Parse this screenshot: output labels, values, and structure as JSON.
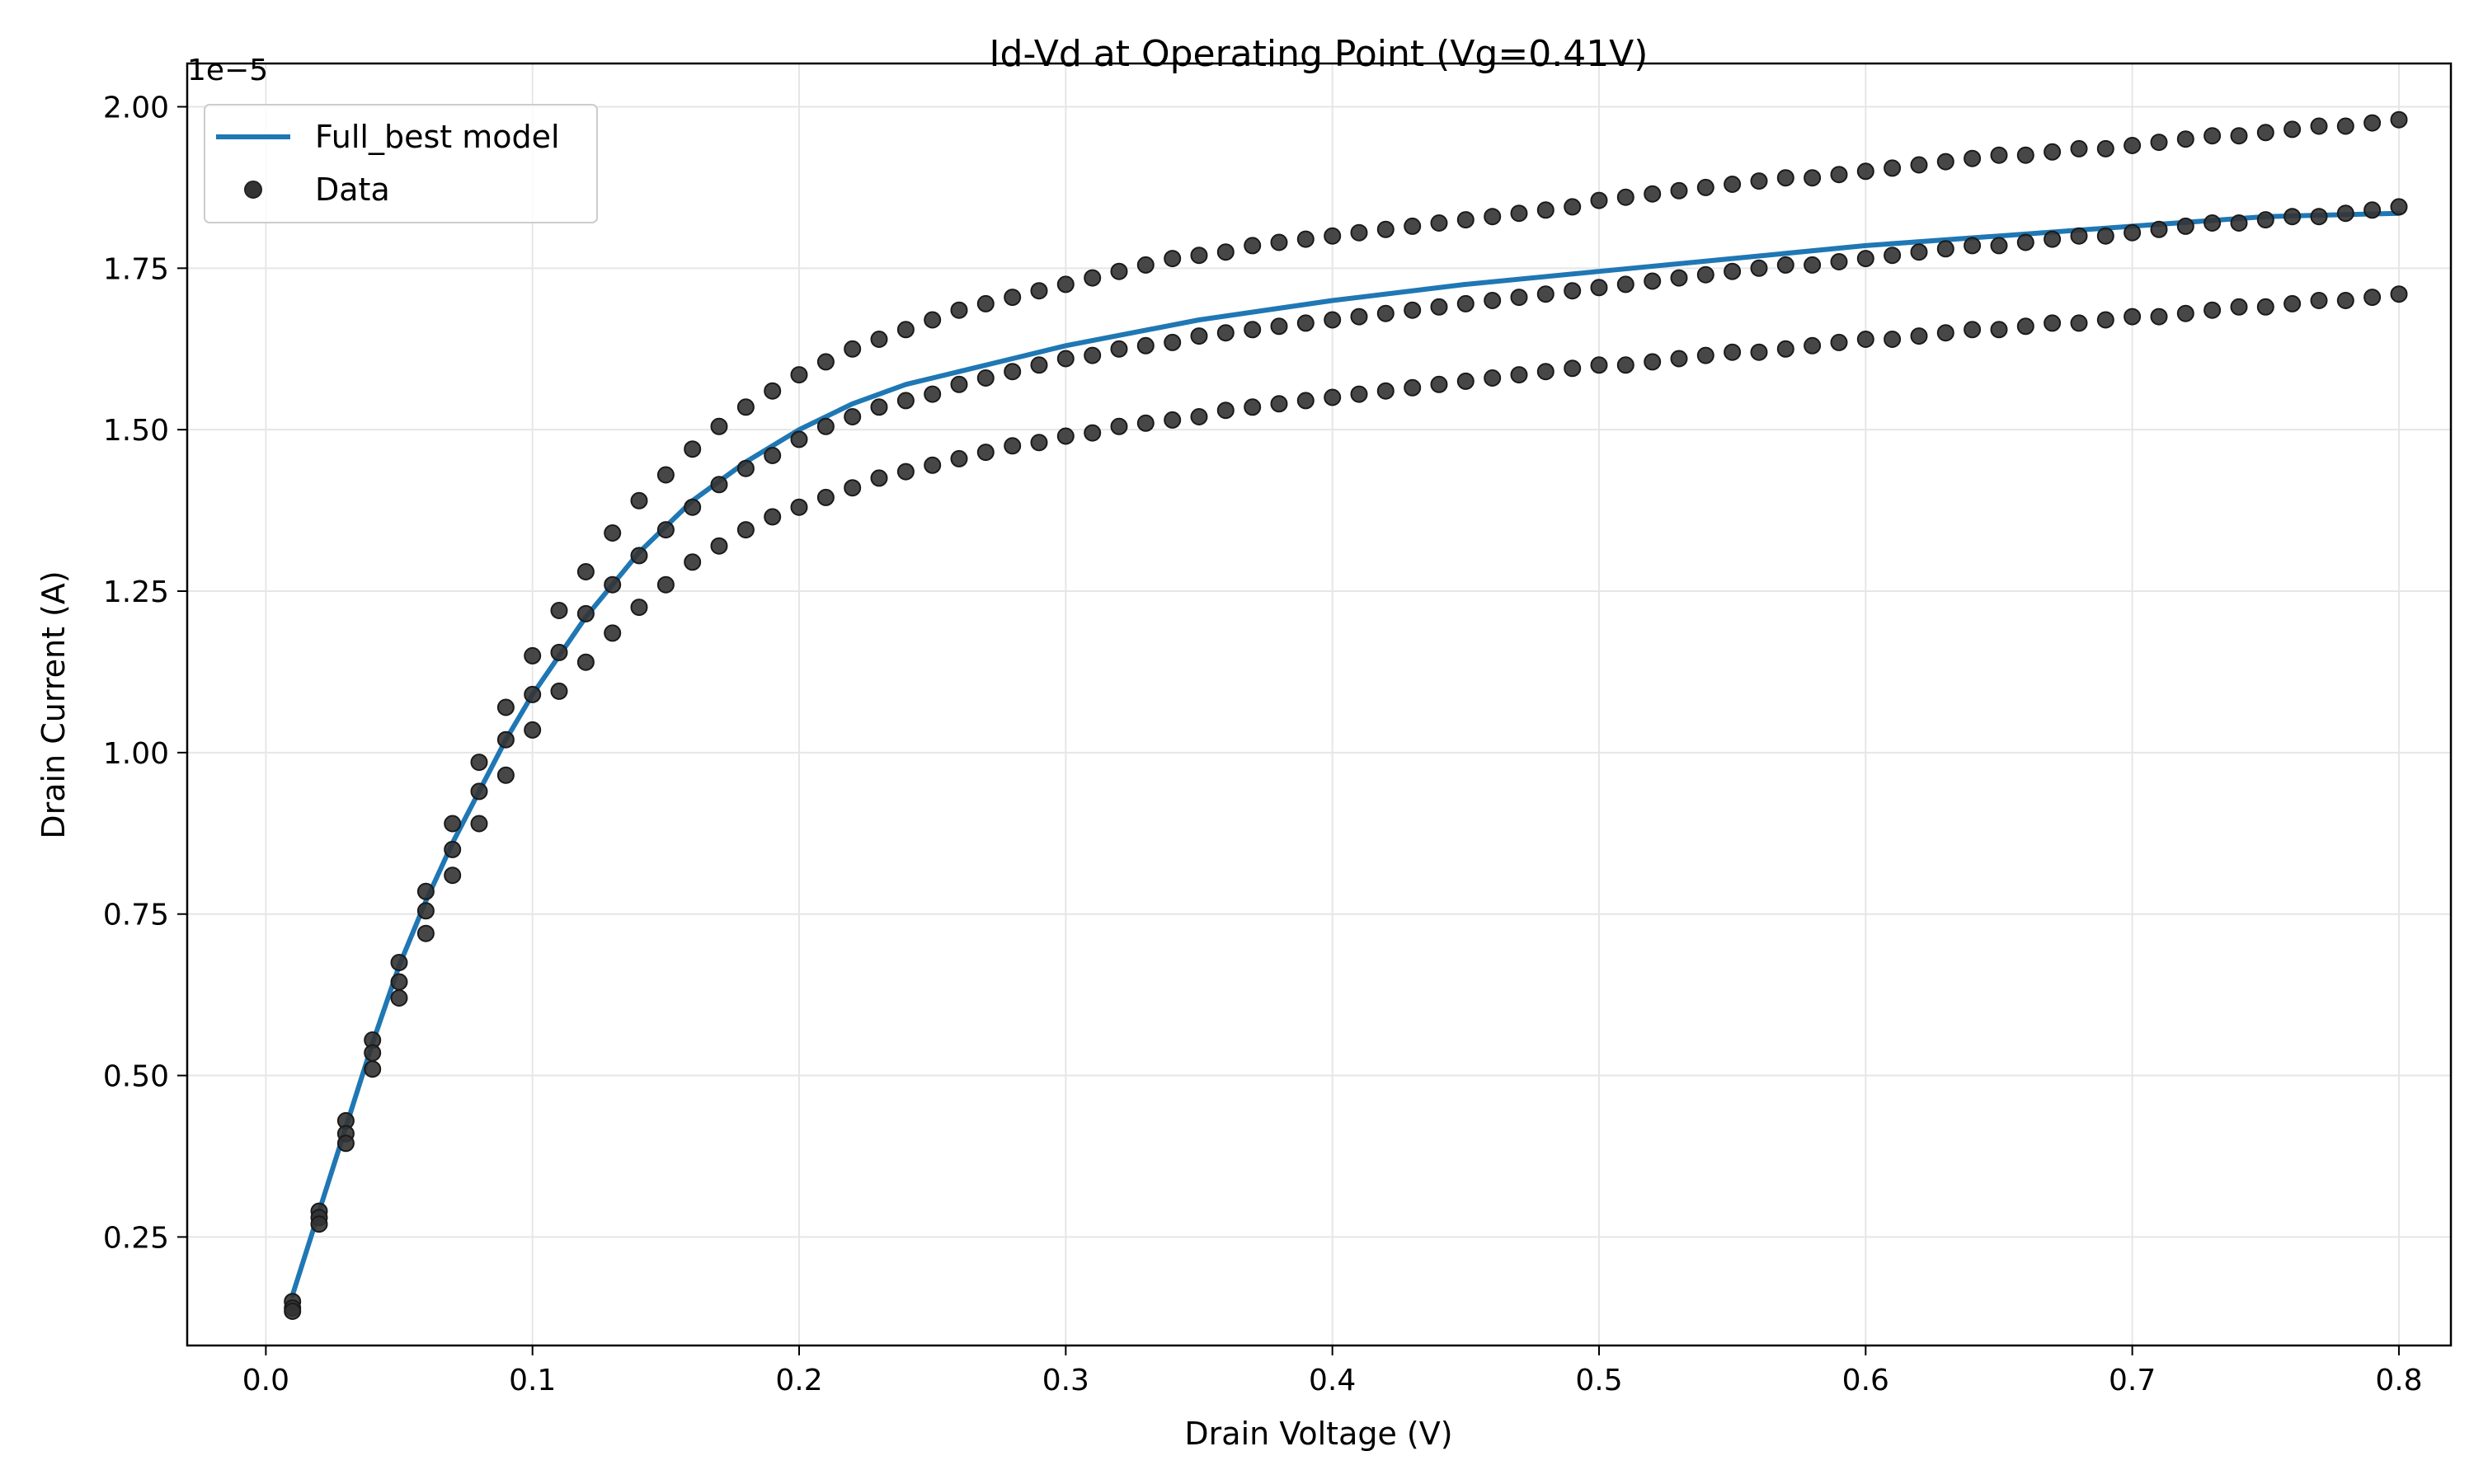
{
  "chart_data": {
    "type": "line",
    "title": "Id-Vd at Operating Point (Vg=0.41V)",
    "xlabel": "Drain Voltage (V)",
    "ylabel": "Drain Current (A)",
    "y_offset_label": "1e−5",
    "xlim": [
      -0.0295,
      0.8195
    ],
    "ylim": [
      0.082,
      2.067
    ],
    "x_ticks": [
      0.0,
      0.1,
      0.2,
      0.3,
      0.4,
      0.5,
      0.6,
      0.7,
      0.8
    ],
    "x_tick_labels": [
      "0.0",
      "0.1",
      "0.2",
      "0.3",
      "0.4",
      "0.5",
      "0.6",
      "0.7",
      "0.8"
    ],
    "y_ticks": [
      0.25,
      0.5,
      0.75,
      1.0,
      1.25,
      1.5,
      1.75,
      2.0
    ],
    "y_tick_labels": [
      "0.25",
      "0.50",
      "0.75",
      "1.00",
      "1.25",
      "1.50",
      "1.75",
      "2.00"
    ],
    "grid": true,
    "legend_position": "top-left",
    "colors": {
      "model_line": "#1f77b4",
      "data_points": "#333333",
      "grid": "#e6e6e6",
      "axes": "#000000"
    },
    "series": [
      {
        "name": "Full_best model",
        "kind": "line",
        "x": [
          0.01,
          0.02,
          0.03,
          0.04,
          0.05,
          0.06,
          0.07,
          0.08,
          0.09,
          0.1,
          0.12,
          0.14,
          0.16,
          0.18,
          0.2,
          0.22,
          0.24,
          0.26,
          0.28,
          0.3,
          0.35,
          0.4,
          0.45,
          0.5,
          0.55,
          0.6,
          0.65,
          0.7,
          0.75,
          0.8
        ],
        "y": [
          0.16,
          0.29,
          0.42,
          0.55,
          0.67,
          0.77,
          0.86,
          0.94,
          1.02,
          1.09,
          1.21,
          1.31,
          1.39,
          1.45,
          1.5,
          1.54,
          1.57,
          1.59,
          1.61,
          1.63,
          1.67,
          1.7,
          1.725,
          1.745,
          1.765,
          1.785,
          1.8,
          1.815,
          1.83,
          1.835
        ]
      },
      {
        "name": "Data",
        "kind": "scatter",
        "x": [
          0.01,
          0.02,
          0.03,
          0.04,
          0.05,
          0.06,
          0.07,
          0.08,
          0.09,
          0.1,
          0.11,
          0.12,
          0.13,
          0.14,
          0.15,
          0.16,
          0.17,
          0.18,
          0.19,
          0.2,
          0.21,
          0.22,
          0.23,
          0.24,
          0.25,
          0.26,
          0.27,
          0.28,
          0.29,
          0.3,
          0.31,
          0.32,
          0.33,
          0.34,
          0.35,
          0.36,
          0.37,
          0.38,
          0.39,
          0.4,
          0.41,
          0.42,
          0.43,
          0.44,
          0.45,
          0.46,
          0.47,
          0.48,
          0.49,
          0.5,
          0.51,
          0.52,
          0.53,
          0.54,
          0.55,
          0.56,
          0.57,
          0.58,
          0.59,
          0.6,
          0.61,
          0.62,
          0.63,
          0.64,
          0.65,
          0.66,
          0.67,
          0.68,
          0.69,
          0.7,
          0.71,
          0.72,
          0.73,
          0.74,
          0.75,
          0.76,
          0.77,
          0.78,
          0.79,
          0.8,
          0.01,
          0.02,
          0.03,
          0.04,
          0.05,
          0.06,
          0.07,
          0.08,
          0.09,
          0.1,
          0.11,
          0.12,
          0.13,
          0.14,
          0.15,
          0.16,
          0.17,
          0.18,
          0.19,
          0.2,
          0.21,
          0.22,
          0.23,
          0.24,
          0.25,
          0.26,
          0.27,
          0.28,
          0.29,
          0.3,
          0.31,
          0.32,
          0.33,
          0.34,
          0.35,
          0.36,
          0.37,
          0.38,
          0.39,
          0.4,
          0.41,
          0.42,
          0.43,
          0.44,
          0.45,
          0.46,
          0.47,
          0.48,
          0.49,
          0.5,
          0.51,
          0.52,
          0.53,
          0.54,
          0.55,
          0.56,
          0.57,
          0.58,
          0.59,
          0.6,
          0.61,
          0.62,
          0.63,
          0.64,
          0.65,
          0.66,
          0.67,
          0.68,
          0.69,
          0.7,
          0.71,
          0.72,
          0.73,
          0.74,
          0.75,
          0.76,
          0.77,
          0.78,
          0.79,
          0.8,
          0.01,
          0.02,
          0.03,
          0.04,
          0.05,
          0.06,
          0.07,
          0.08,
          0.09,
          0.1,
          0.11,
          0.12,
          0.13,
          0.14,
          0.15,
          0.16,
          0.17,
          0.18,
          0.19,
          0.2,
          0.21,
          0.22,
          0.23,
          0.24,
          0.25,
          0.26,
          0.27,
          0.28,
          0.29,
          0.3,
          0.31,
          0.32,
          0.33,
          0.34,
          0.35,
          0.36,
          0.37,
          0.38,
          0.39,
          0.4,
          0.41,
          0.42,
          0.43,
          0.44,
          0.45,
          0.46,
          0.47,
          0.48,
          0.49,
          0.5,
          0.51,
          0.52,
          0.53,
          0.54,
          0.55,
          0.56,
          0.57,
          0.58,
          0.59,
          0.6,
          0.61,
          0.62,
          0.63,
          0.64,
          0.65,
          0.66,
          0.67,
          0.68,
          0.69,
          0.7,
          0.71,
          0.72,
          0.73,
          0.74,
          0.75,
          0.76,
          0.77,
          0.78,
          0.79,
          0.8
        ],
        "y": [
          0.15,
          0.29,
          0.43,
          0.555,
          0.675,
          0.785,
          0.89,
          0.985,
          1.07,
          1.15,
          1.22,
          1.28,
          1.34,
          1.39,
          1.43,
          1.47,
          1.505,
          1.535,
          1.56,
          1.585,
          1.605,
          1.625,
          1.64,
          1.655,
          1.67,
          1.685,
          1.695,
          1.705,
          1.715,
          1.725,
          1.735,
          1.745,
          1.755,
          1.765,
          1.77,
          1.775,
          1.785,
          1.79,
          1.795,
          1.8,
          1.805,
          1.81,
          1.815,
          1.82,
          1.825,
          1.83,
          1.835,
          1.84,
          1.845,
          1.855,
          1.86,
          1.865,
          1.87,
          1.875,
          1.88,
          1.885,
          1.89,
          1.89,
          1.895,
          1.9,
          1.905,
          1.91,
          1.915,
          1.92,
          1.925,
          1.925,
          1.93,
          1.935,
          1.935,
          1.94,
          1.945,
          1.95,
          1.955,
          1.955,
          1.96,
          1.965,
          1.97,
          1.97,
          1.975,
          1.98,
          0.14,
          0.28,
          0.41,
          0.535,
          0.645,
          0.755,
          0.85,
          0.94,
          1.02,
          1.09,
          1.155,
          1.215,
          1.26,
          1.305,
          1.345,
          1.38,
          1.415,
          1.44,
          1.46,
          1.485,
          1.505,
          1.52,
          1.535,
          1.545,
          1.555,
          1.57,
          1.58,
          1.59,
          1.6,
          1.61,
          1.615,
          1.625,
          1.63,
          1.635,
          1.645,
          1.65,
          1.655,
          1.66,
          1.665,
          1.67,
          1.675,
          1.68,
          1.685,
          1.69,
          1.695,
          1.7,
          1.705,
          1.71,
          1.715,
          1.72,
          1.725,
          1.73,
          1.735,
          1.74,
          1.745,
          1.75,
          1.755,
          1.755,
          1.76,
          1.765,
          1.77,
          1.775,
          1.78,
          1.785,
          1.785,
          1.79,
          1.795,
          1.8,
          1.8,
          1.805,
          1.81,
          1.815,
          1.82,
          1.82,
          1.825,
          1.83,
          1.83,
          1.835,
          1.84,
          1.845,
          0.135,
          0.27,
          0.395,
          0.51,
          0.62,
          0.72,
          0.81,
          0.89,
          0.965,
          1.035,
          1.095,
          1.14,
          1.185,
          1.225,
          1.26,
          1.295,
          1.32,
          1.345,
          1.365,
          1.38,
          1.395,
          1.41,
          1.425,
          1.435,
          1.445,
          1.455,
          1.465,
          1.475,
          1.48,
          1.49,
          1.495,
          1.505,
          1.51,
          1.515,
          1.52,
          1.53,
          1.535,
          1.54,
          1.545,
          1.55,
          1.555,
          1.56,
          1.565,
          1.57,
          1.575,
          1.58,
          1.585,
          1.59,
          1.595,
          1.6,
          1.6,
          1.605,
          1.61,
          1.615,
          1.62,
          1.62,
          1.625,
          1.63,
          1.635,
          1.64,
          1.64,
          1.645,
          1.65,
          1.655,
          1.655,
          1.66,
          1.665,
          1.665,
          1.67,
          1.675,
          1.675,
          1.68,
          1.685,
          1.69,
          1.69,
          1.695,
          1.7,
          1.7,
          1.705,
          1.71
        ]
      }
    ]
  }
}
